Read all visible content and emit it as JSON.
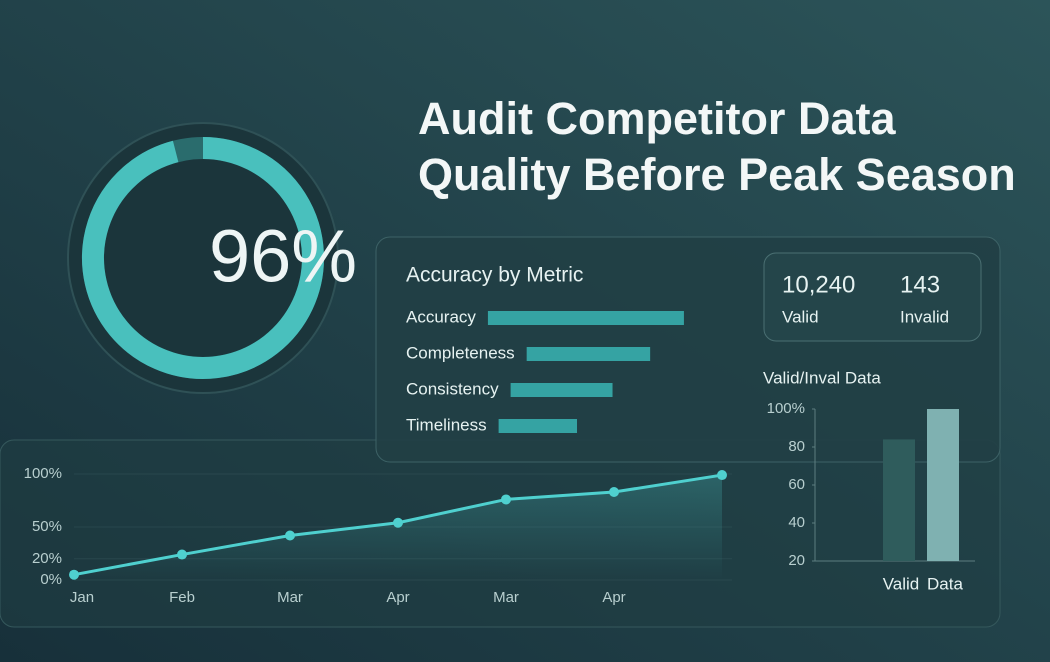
{
  "title": "Audit Competitor Data Quality Before Peak Season",
  "stats": [
    {
      "value": "10,240",
      "label": "Valid"
    },
    {
      "value": "143",
      "label": "Invalid"
    }
  ],
  "chart_data": [
    {
      "type": "gauge",
      "values": [
        96
      ],
      "value_labels": [
        "96%"
      ],
      "color": "#4fcfcb"
    },
    {
      "type": "hbar",
      "title": "Accuracy by Metric",
      "categories": [
        "Accuracy",
        "Completeness",
        "Consistency",
        "Timeliness"
      ],
      "values": [
        100,
        63,
        52,
        40
      ],
      "color": "#35a3a3"
    },
    {
      "type": "line",
      "categories": [
        "Jan",
        "Feb",
        "Mar",
        "Apr",
        "Mar",
        "Apr",
        null
      ],
      "values": [
        5,
        24,
        42,
        54,
        76,
        83,
        99
      ],
      "color": "#4fd0cf",
      "ylim": [
        0,
        100
      ],
      "yticks": [
        {
          "value": 0,
          "label": "0%"
        },
        {
          "value": 20,
          "label": "20%"
        },
        {
          "value": 50,
          "label": "50%"
        },
        {
          "value": 100,
          "label": "100%"
        }
      ],
      "grid": true
    },
    {
      "type": "bar",
      "title": "Valid/Inval Data",
      "categories": [
        "Valid",
        "Data"
      ],
      "values": [
        84,
        100
      ],
      "colors": [
        "#2f5c5c",
        "#7fb1b1"
      ],
      "ylim": [
        20,
        100
      ],
      "yticks": [
        20,
        40,
        60,
        80,
        {
          "value": 100,
          "label": "100%"
        }
      ]
    }
  ]
}
